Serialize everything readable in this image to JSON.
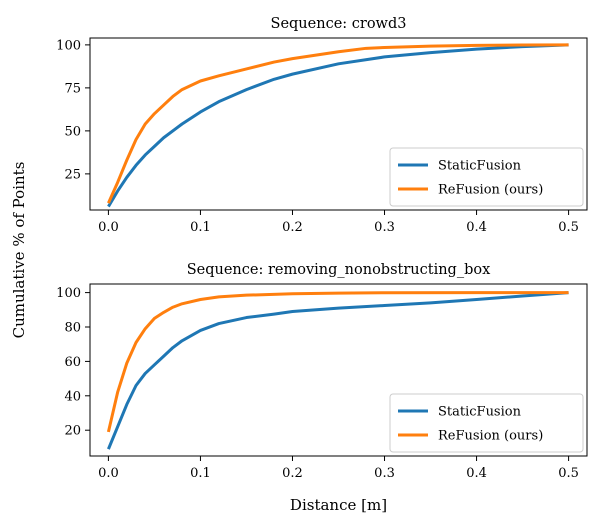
{
  "figure": {
    "ylabel": "Cumulative % of Points"
  },
  "chart_data": [
    {
      "type": "line",
      "title": "Sequence: crowd3",
      "xlabel": "",
      "ylabel": "Cumulative % of Points",
      "xlim": [
        -0.02,
        0.52
      ],
      "ylim": [
        4,
        104
      ],
      "xticks": [
        0.0,
        0.1,
        0.2,
        0.3,
        0.4,
        0.5
      ],
      "xtick_labels": [
        "0.0",
        "0.1",
        "0.2",
        "0.3",
        "0.4",
        "0.5"
      ],
      "yticks": [
        25,
        50,
        75,
        100
      ],
      "ytick_labels": [
        "25",
        "50",
        "75",
        "100"
      ],
      "legend_position": "lower-right",
      "grid": false,
      "series": [
        {
          "name": "StaticFusion",
          "color": "#1f77b4",
          "x": [
            0.0,
            0.01,
            0.02,
            0.03,
            0.04,
            0.05,
            0.06,
            0.08,
            0.1,
            0.12,
            0.15,
            0.18,
            0.2,
            0.25,
            0.3,
            0.35,
            0.4,
            0.45,
            0.5
          ],
          "y": [
            6,
            15,
            23,
            30,
            36,
            41,
            46,
            54,
            61,
            67,
            74,
            80,
            83,
            89,
            93,
            95.5,
            97.5,
            99,
            100
          ]
        },
        {
          "name": "ReFusion (ours)",
          "color": "#ff7f0e",
          "x": [
            0.0,
            0.01,
            0.02,
            0.03,
            0.04,
            0.05,
            0.06,
            0.07,
            0.08,
            0.1,
            0.12,
            0.15,
            0.18,
            0.2,
            0.25,
            0.28,
            0.3,
            0.35,
            0.4,
            0.45,
            0.5
          ],
          "y": [
            8,
            20,
            33,
            45,
            54,
            60,
            65,
            70,
            74,
            79,
            82,
            86,
            90,
            92,
            96,
            98,
            98.5,
            99.3,
            99.7,
            99.9,
            100
          ]
        }
      ]
    },
    {
      "type": "line",
      "title": "Sequence: removing_nonobstructing_box",
      "xlabel": "Distance [m]",
      "ylabel": "Cumulative % of Points",
      "xlim": [
        -0.02,
        0.52
      ],
      "ylim": [
        5,
        105
      ],
      "xticks": [
        0.0,
        0.1,
        0.2,
        0.3,
        0.4,
        0.5
      ],
      "xtick_labels": [
        "0.0",
        "0.1",
        "0.2",
        "0.3",
        "0.4",
        "0.5"
      ],
      "yticks": [
        20,
        40,
        60,
        80,
        100
      ],
      "ytick_labels": [
        "20",
        "40",
        "60",
        "80",
        "100"
      ],
      "legend_position": "lower-right",
      "grid": false,
      "series": [
        {
          "name": "StaticFusion",
          "color": "#1f77b4",
          "x": [
            0.0,
            0.01,
            0.02,
            0.03,
            0.04,
            0.05,
            0.06,
            0.07,
            0.08,
            0.1,
            0.12,
            0.15,
            0.18,
            0.2,
            0.25,
            0.3,
            0.35,
            0.4,
            0.45,
            0.5
          ],
          "y": [
            9,
            22,
            35,
            46,
            53,
            58,
            63,
            68,
            72,
            78,
            82,
            85.5,
            87.5,
            89,
            91,
            92.5,
            94,
            96,
            98,
            100
          ]
        },
        {
          "name": "ReFusion (ours)",
          "color": "#ff7f0e",
          "x": [
            0.0,
            0.01,
            0.02,
            0.03,
            0.04,
            0.05,
            0.06,
            0.07,
            0.08,
            0.1,
            0.12,
            0.15,
            0.2,
            0.25,
            0.3,
            0.4,
            0.5
          ],
          "y": [
            19,
            42,
            59,
            71,
            79,
            85,
            88.5,
            91.5,
            93.5,
            96,
            97.5,
            98.5,
            99.3,
            99.7,
            99.9,
            100,
            100
          ]
        }
      ]
    }
  ]
}
